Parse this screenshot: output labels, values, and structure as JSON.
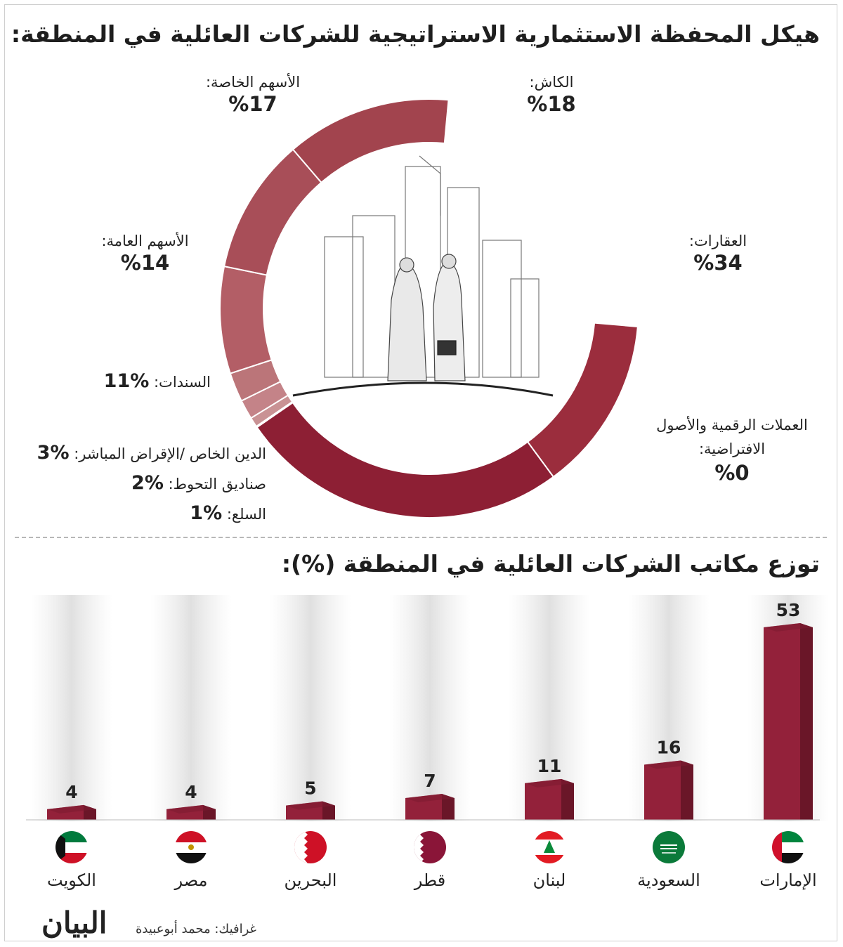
{
  "title_top": "هيكل المحفظة الاستثمارية الاستراتيجية للشركات العائلية في المنطقة:",
  "title_bottom": "توزع مكاتب الشركات العائلية في المنطقة (%):",
  "credit": "غرافيك: محمد أبوعبيدة",
  "logo_text": "البيان",
  "chart_data": [
    {
      "type": "pie",
      "categories": [
        "الكاش:",
        "العقارات:",
        "العملات الرقمية والأصول الافتراضية:",
        "السلع:",
        "صناديق التحوط:",
        "الدين الخاص /الإقراض المباشر:",
        "السندات:",
        "الأسهم العامة:",
        "الأسهم الخاصة:"
      ],
      "values": [
        18,
        34,
        0,
        1,
        2,
        3,
        11,
        14,
        17
      ],
      "value_labels": [
        "%18",
        "%34",
        "%0",
        "%1",
        "%2",
        "%3",
        "%11",
        "%14",
        "%17"
      ],
      "colors": [
        "#9b2d3d",
        "#8d1f34",
        "#8d1f34",
        "#c99294",
        "#c48388",
        "#bb7579",
        "#b35e66",
        "#a84e58",
        "#a2444e"
      ]
    },
    {
      "type": "bar",
      "categories": [
        "الإمارات",
        "السعودية",
        "لبنان",
        "قطر",
        "البحرين",
        "مصر",
        "الكويت"
      ],
      "values": [
        53,
        16,
        11,
        7,
        5,
        4,
        4
      ],
      "bar_color": "#93213a"
    }
  ]
}
